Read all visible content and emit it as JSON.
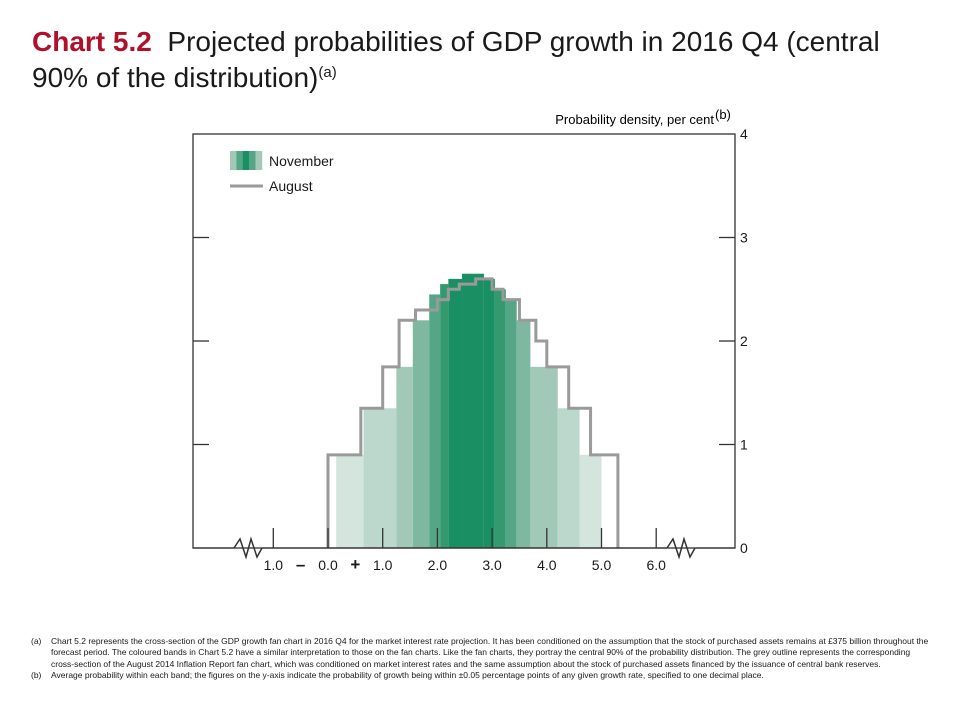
{
  "title": {
    "number": "Chart 5.2",
    "text": "Projected probabilities of GDP growth in 2016 Q4 (central 90% of the distribution)",
    "sup": "(a)"
  },
  "chart_data": {
    "type": "bar",
    "title": "Projected probabilities of GDP growth in 2016 Q4 (central 90% of the distribution)",
    "ylabel": "Probability density, per cent",
    "ylabel_sup": "(b)",
    "ylim": [
      0,
      4
    ],
    "yticks": [
      0,
      1,
      2,
      3,
      4
    ],
    "xlim": [
      -1.0,
      6.0
    ],
    "xticks": [
      {
        "value": -1.0,
        "label": "1.0"
      },
      {
        "value": -0.5,
        "label": "–"
      },
      {
        "value": 0.0,
        "label": "0.0"
      },
      {
        "value": 0.5,
        "label": "+"
      },
      {
        "value": 1.0,
        "label": "1.0"
      },
      {
        "value": 2.0,
        "label": "2.0"
      },
      {
        "value": 3.0,
        "label": "3.0"
      },
      {
        "value": 4.0,
        "label": "4.0"
      },
      {
        "value": 5.0,
        "label": "5.0"
      },
      {
        "value": 6.0,
        "label": "6.0"
      }
    ],
    "legend_position": "top-left",
    "series": [
      {
        "name": "November",
        "style": "shaded-bands",
        "bands": [
          {
            "x0": 0.15,
            "x1": 0.65,
            "value": 0.9,
            "shade": 0
          },
          {
            "x0": 0.65,
            "x1": 1.25,
            "value": 1.35,
            "shade": 1
          },
          {
            "x0": 1.25,
            "x1": 1.55,
            "value": 1.75,
            "shade": 2
          },
          {
            "x0": 1.55,
            "x1": 1.85,
            "value": 2.2,
            "shade": 3
          },
          {
            "x0": 1.85,
            "x1": 2.05,
            "value": 2.45,
            "shade": 4
          },
          {
            "x0": 2.05,
            "x1": 2.2,
            "value": 2.55,
            "shade": 5
          },
          {
            "x0": 2.2,
            "x1": 2.45,
            "value": 2.6,
            "shade": 6
          },
          {
            "x0": 2.45,
            "x1": 2.85,
            "value": 2.65,
            "shade": 6
          },
          {
            "x0": 2.85,
            "x1": 3.05,
            "value": 2.6,
            "shade": 6
          },
          {
            "x0": 3.05,
            "x1": 3.25,
            "value": 2.5,
            "shade": 5
          },
          {
            "x0": 3.25,
            "x1": 3.45,
            "value": 2.4,
            "shade": 4
          },
          {
            "x0": 3.45,
            "x1": 3.7,
            "value": 2.2,
            "shade": 3
          },
          {
            "x0": 3.7,
            "x1": 4.2,
            "value": 1.75,
            "shade": 2
          },
          {
            "x0": 4.2,
            "x1": 4.6,
            "value": 1.35,
            "shade": 1
          },
          {
            "x0": 4.6,
            "x1": 5.0,
            "value": 0.9,
            "shade": 0
          }
        ]
      },
      {
        "name": "August",
        "style": "step-outline",
        "bands": [
          {
            "x0": 0.0,
            "x1": 0.6,
            "value": 0.9
          },
          {
            "x0": 0.6,
            "x1": 1.0,
            "value": 1.35
          },
          {
            "x0": 1.0,
            "x1": 1.3,
            "value": 1.75
          },
          {
            "x0": 1.3,
            "x1": 1.6,
            "value": 2.2
          },
          {
            "x0": 1.6,
            "x1": 2.0,
            "value": 2.3
          },
          {
            "x0": 2.0,
            "x1": 2.2,
            "value": 2.4
          },
          {
            "x0": 2.2,
            "x1": 2.4,
            "value": 2.5
          },
          {
            "x0": 2.4,
            "x1": 2.7,
            "value": 2.55
          },
          {
            "x0": 2.7,
            "x1": 3.0,
            "value": 2.6
          },
          {
            "x0": 3.0,
            "x1": 3.2,
            "value": 2.5
          },
          {
            "x0": 3.2,
            "x1": 3.5,
            "value": 2.4
          },
          {
            "x0": 3.5,
            "x1": 3.8,
            "value": 2.2
          },
          {
            "x0": 3.8,
            "x1": 4.0,
            "value": 2.0
          },
          {
            "x0": 4.0,
            "x1": 4.4,
            "value": 1.75
          },
          {
            "x0": 4.4,
            "x1": 4.8,
            "value": 1.35
          },
          {
            "x0": 4.8,
            "x1": 5.3,
            "value": 0.9
          }
        ]
      }
    ],
    "colors": {
      "shades": [
        "#d3e5dd",
        "#bcd8cc",
        "#a2c9b8",
        "#7fb8a0",
        "#55a686",
        "#35996f",
        "#1a8f63"
      ],
      "august": "#9a9a9a",
      "axis": "#333333"
    }
  },
  "footnotes": [
    {
      "mark": "(a)",
      "text": "Chart 5.2 represents the cross-section of the GDP growth fan chart in 2016 Q4 for the market interest rate projection.  It has been conditioned on the assumption that the stock of purchased assets remains at £375 billion throughout the forecast period.  The coloured bands in Chart 5.2 have a similar interpretation to those on the fan charts.  Like the fan charts, they portray the central 90% of the probability distribution.  The grey outline represents the corresponding cross-section of the August 2014 Inflation Report fan chart, which was conditioned on market interest rates and the same assumption about the stock of purchased assets financed by the issuance of central bank reserves."
    },
    {
      "mark": "(b)",
      "text": "Average probability within each band; the figures on the y-axis indicate the probability of growth being within ±0.05 percentage points of any given growth rate, specified to one decimal place."
    }
  ]
}
